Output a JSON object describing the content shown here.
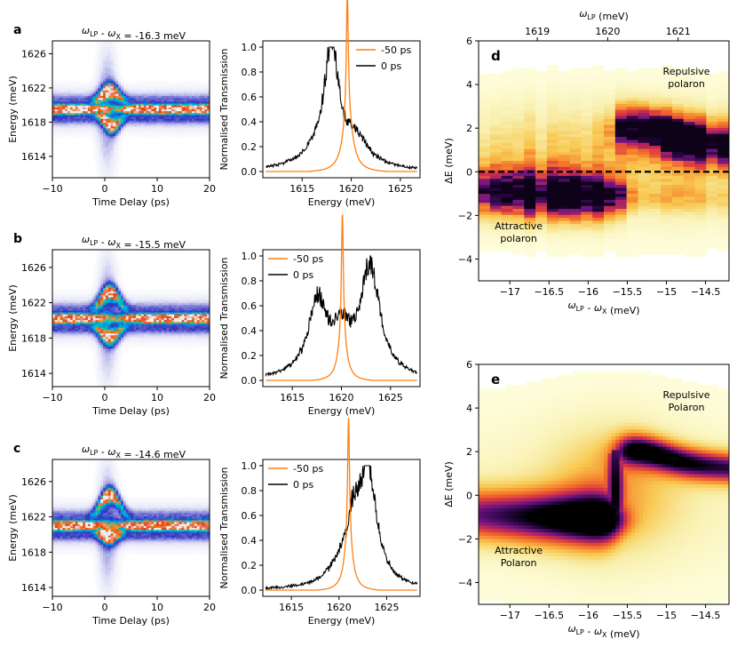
{
  "colors": {
    "orange": "#ff7f0e",
    "black": "#000000",
    "red_label": "#d62728",
    "blue_label": "#1f77b4"
  },
  "chart_data": [
    {
      "id": "a-map",
      "type": "heatmap",
      "panel_letter": "a",
      "title": "ωLP - ωX = -16.3 meV",
      "xlabel": "Time Delay (ps)",
      "ylabel": "Energy (meV)",
      "xlim": [
        -10,
        20
      ],
      "ylim": [
        1611.5,
        1627.5
      ],
      "xticks": [
        -10,
        0,
        10,
        20
      ],
      "yticks": [
        1614,
        1618,
        1622,
        1626
      ],
      "center_energy": 1619.5
    },
    {
      "id": "a-spec",
      "type": "line",
      "xlabel": "Energy (meV)",
      "ylabel": "Normalised Transmission",
      "xlim": [
        1611,
        1627
      ],
      "ylim": [
        -0.05,
        1.05
      ],
      "xticks": [
        1615,
        1620,
        1625
      ],
      "yticks": [
        0.0,
        0.2,
        0.4,
        0.6,
        0.8,
        1.0
      ],
      "legend_position": "top-right",
      "series": [
        {
          "name": "-50 ps",
          "color": "#ff7f0e",
          "peaks": [
            {
              "x": 1619.6,
              "a": 1.0,
              "w": 0.12
            },
            {
              "x": 1619.65,
              "a": 0.45,
              "w": 0.6
            }
          ]
        },
        {
          "name": "0 ps",
          "color": "#000000",
          "peaks": [
            {
              "x": 1618.0,
              "a": 0.93,
              "w": 0.85
            },
            {
              "x": 1620.5,
              "a": 0.2,
              "w": 1.6
            },
            {
              "x": 1617.0,
              "a": 0.12,
              "w": 2.5
            }
          ]
        }
      ]
    },
    {
      "id": "b-map",
      "type": "heatmap",
      "panel_letter": "b",
      "title": "ωLP - ωX = -15.5 meV",
      "xlabel": "Time Delay (ps)",
      "ylabel": "Energy (meV)",
      "xlim": [
        -10,
        20
      ],
      "ylim": [
        1612.5,
        1628
      ],
      "xticks": [
        -10,
        0,
        10,
        20
      ],
      "yticks": [
        1614,
        1618,
        1622,
        1626
      ],
      "center_energy": 1620.2
    },
    {
      "id": "b-spec",
      "type": "line",
      "xlabel": "Energy (meV)",
      "ylabel": "Normalised Transmission",
      "xlim": [
        1612,
        1628
      ],
      "ylim": [
        -0.05,
        1.05
      ],
      "xticks": [
        1615,
        1620,
        1625
      ],
      "yticks": [
        0.0,
        0.2,
        0.4,
        0.6,
        0.8,
        1.0
      ],
      "legend_position": "top-left",
      "series": [
        {
          "name": "-50 ps",
          "color": "#ff7f0e",
          "peaks": [
            {
              "x": 1620.1,
              "a": 1.0,
              "w": 0.12
            },
            {
              "x": 1620.1,
              "a": 0.35,
              "w": 0.5
            }
          ]
        },
        {
          "name": "0 ps",
          "color": "#000000",
          "peaks": [
            {
              "x": 1617.6,
              "a": 0.6,
              "w": 1.2
            },
            {
              "x": 1622.9,
              "a": 0.9,
              "w": 1.2
            },
            {
              "x": 1620.0,
              "a": 0.3,
              "w": 1.0
            }
          ]
        }
      ]
    },
    {
      "id": "c-map",
      "type": "heatmap",
      "panel_letter": "c",
      "title": "ωLP - ωX = -14.6 meV",
      "xlabel": "Time Delay (ps)",
      "ylabel": "Energy (meV)",
      "xlim": [
        -10,
        20
      ],
      "ylim": [
        1613,
        1628.5
      ],
      "xticks": [
        -10,
        0,
        10,
        20
      ],
      "yticks": [
        1614,
        1618,
        1622,
        1626
      ],
      "center_energy": 1621.0
    },
    {
      "id": "c-spec",
      "type": "line",
      "xlabel": "Energy (meV)",
      "ylabel": "Normalised Transmission",
      "xlim": [
        1612,
        1628.5
      ],
      "ylim": [
        -0.05,
        1.05
      ],
      "xticks": [
        1615,
        1620,
        1625
      ],
      "yticks": [
        0.0,
        0.2,
        0.4,
        0.6,
        0.8,
        1.0
      ],
      "legend_position": "top-left",
      "series": [
        {
          "name": "-50 ps",
          "color": "#ff7f0e",
          "peaks": [
            {
              "x": 1621.0,
              "a": 1.0,
              "w": 0.12
            },
            {
              "x": 1621.0,
              "a": 0.4,
              "w": 0.5
            }
          ]
        },
        {
          "name": "0 ps",
          "color": "#000000",
          "peaks": [
            {
              "x": 1623.0,
              "a": 0.97,
              "w": 1.1
            },
            {
              "x": 1621.5,
              "a": 0.35,
              "w": 0.7
            },
            {
              "x": 1620.2,
              "a": 0.15,
              "w": 1.5
            }
          ]
        }
      ]
    },
    {
      "id": "d-map",
      "type": "heatmap",
      "panel_letter": "d",
      "xlabel": "ωLP - ωX (meV)",
      "ylabel": "ΔE (meV)",
      "top_xlabel": "ωLP (meV)",
      "xlim": [
        -17.4,
        -14.2
      ],
      "ylim": [
        -5,
        6
      ],
      "xticks": [
        -17.0,
        -16.5,
        -16.0,
        -15.5,
        -15.0,
        -14.5
      ],
      "yticks": [
        -4,
        -2,
        0,
        2,
        4,
        6
      ],
      "top_xticks": [
        1619,
        1620,
        1621
      ],
      "top_xtick_positions_in_detuning": [
        -16.65,
        -15.75,
        -14.85
      ],
      "dashed_line_y": 0,
      "annotations": [
        {
          "text": "Repulsive polaron",
          "lines": [
            "Repulsive",
            "polaron"
          ],
          "color": "#1f77b4"
        },
        {
          "text": "Attractive polaron",
          "lines": [
            "Attractive",
            "polaron"
          ],
          "color": "#d62728"
        }
      ]
    },
    {
      "id": "e-map",
      "type": "heatmap",
      "panel_letter": "e",
      "xlabel": "ωLP - ωX (meV)",
      "ylabel": "ΔE (meV)",
      "xlim": [
        -17.4,
        -14.2
      ],
      "ylim": [
        -5,
        6
      ],
      "xticks": [
        -17.0,
        -16.5,
        -16.0,
        -15.5,
        -15.0,
        -14.5
      ],
      "yticks": [
        -4,
        -2,
        0,
        2,
        4,
        6
      ],
      "annotations": [
        {
          "text": "Repulsive Polaron",
          "lines": [
            "Repulsive",
            "Polaron"
          ],
          "color": "#1f77b4"
        },
        {
          "text": "Attractive Polaron",
          "lines": [
            "Attractive",
            "Polaron"
          ],
          "color": "#d62728"
        }
      ]
    }
  ]
}
